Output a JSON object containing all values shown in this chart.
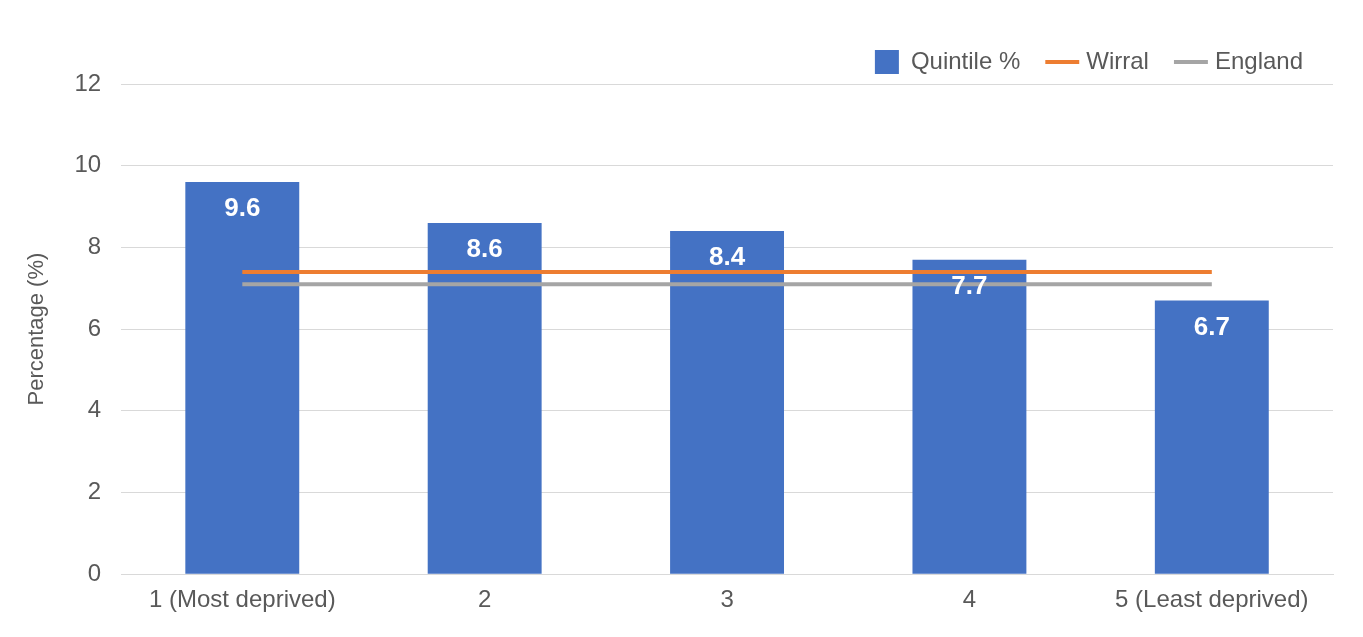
{
  "chart_data": {
    "type": "bar",
    "ylabel": "Percentage (%)",
    "categories": [
      "1 (Most deprived)",
      "2",
      "3",
      "4",
      "5 (Least deprived)"
    ],
    "series": [
      {
        "name": "Quintile %",
        "color": "#4472c4",
        "values": [
          9.6,
          8.6,
          8.4,
          7.7,
          6.7
        ],
        "value_labels": [
          "9.6",
          "8.6",
          "8.4",
          "7.7",
          "6.7"
        ]
      },
      {
        "name": "Wirral",
        "type": "line",
        "color": "#ed7d31",
        "values": [
          7.4,
          7.4,
          7.4,
          7.4,
          7.4
        ]
      },
      {
        "name": "England",
        "type": "line",
        "color": "#a5a5a5",
        "values": [
          7.1,
          7.1,
          7.1,
          7.1,
          7.1
        ]
      }
    ],
    "ylim": [
      0,
      12
    ],
    "yticks": [
      0,
      2,
      4,
      6,
      8,
      10,
      12
    ],
    "grid": "y",
    "legend": "top right",
    "marker": "none"
  }
}
